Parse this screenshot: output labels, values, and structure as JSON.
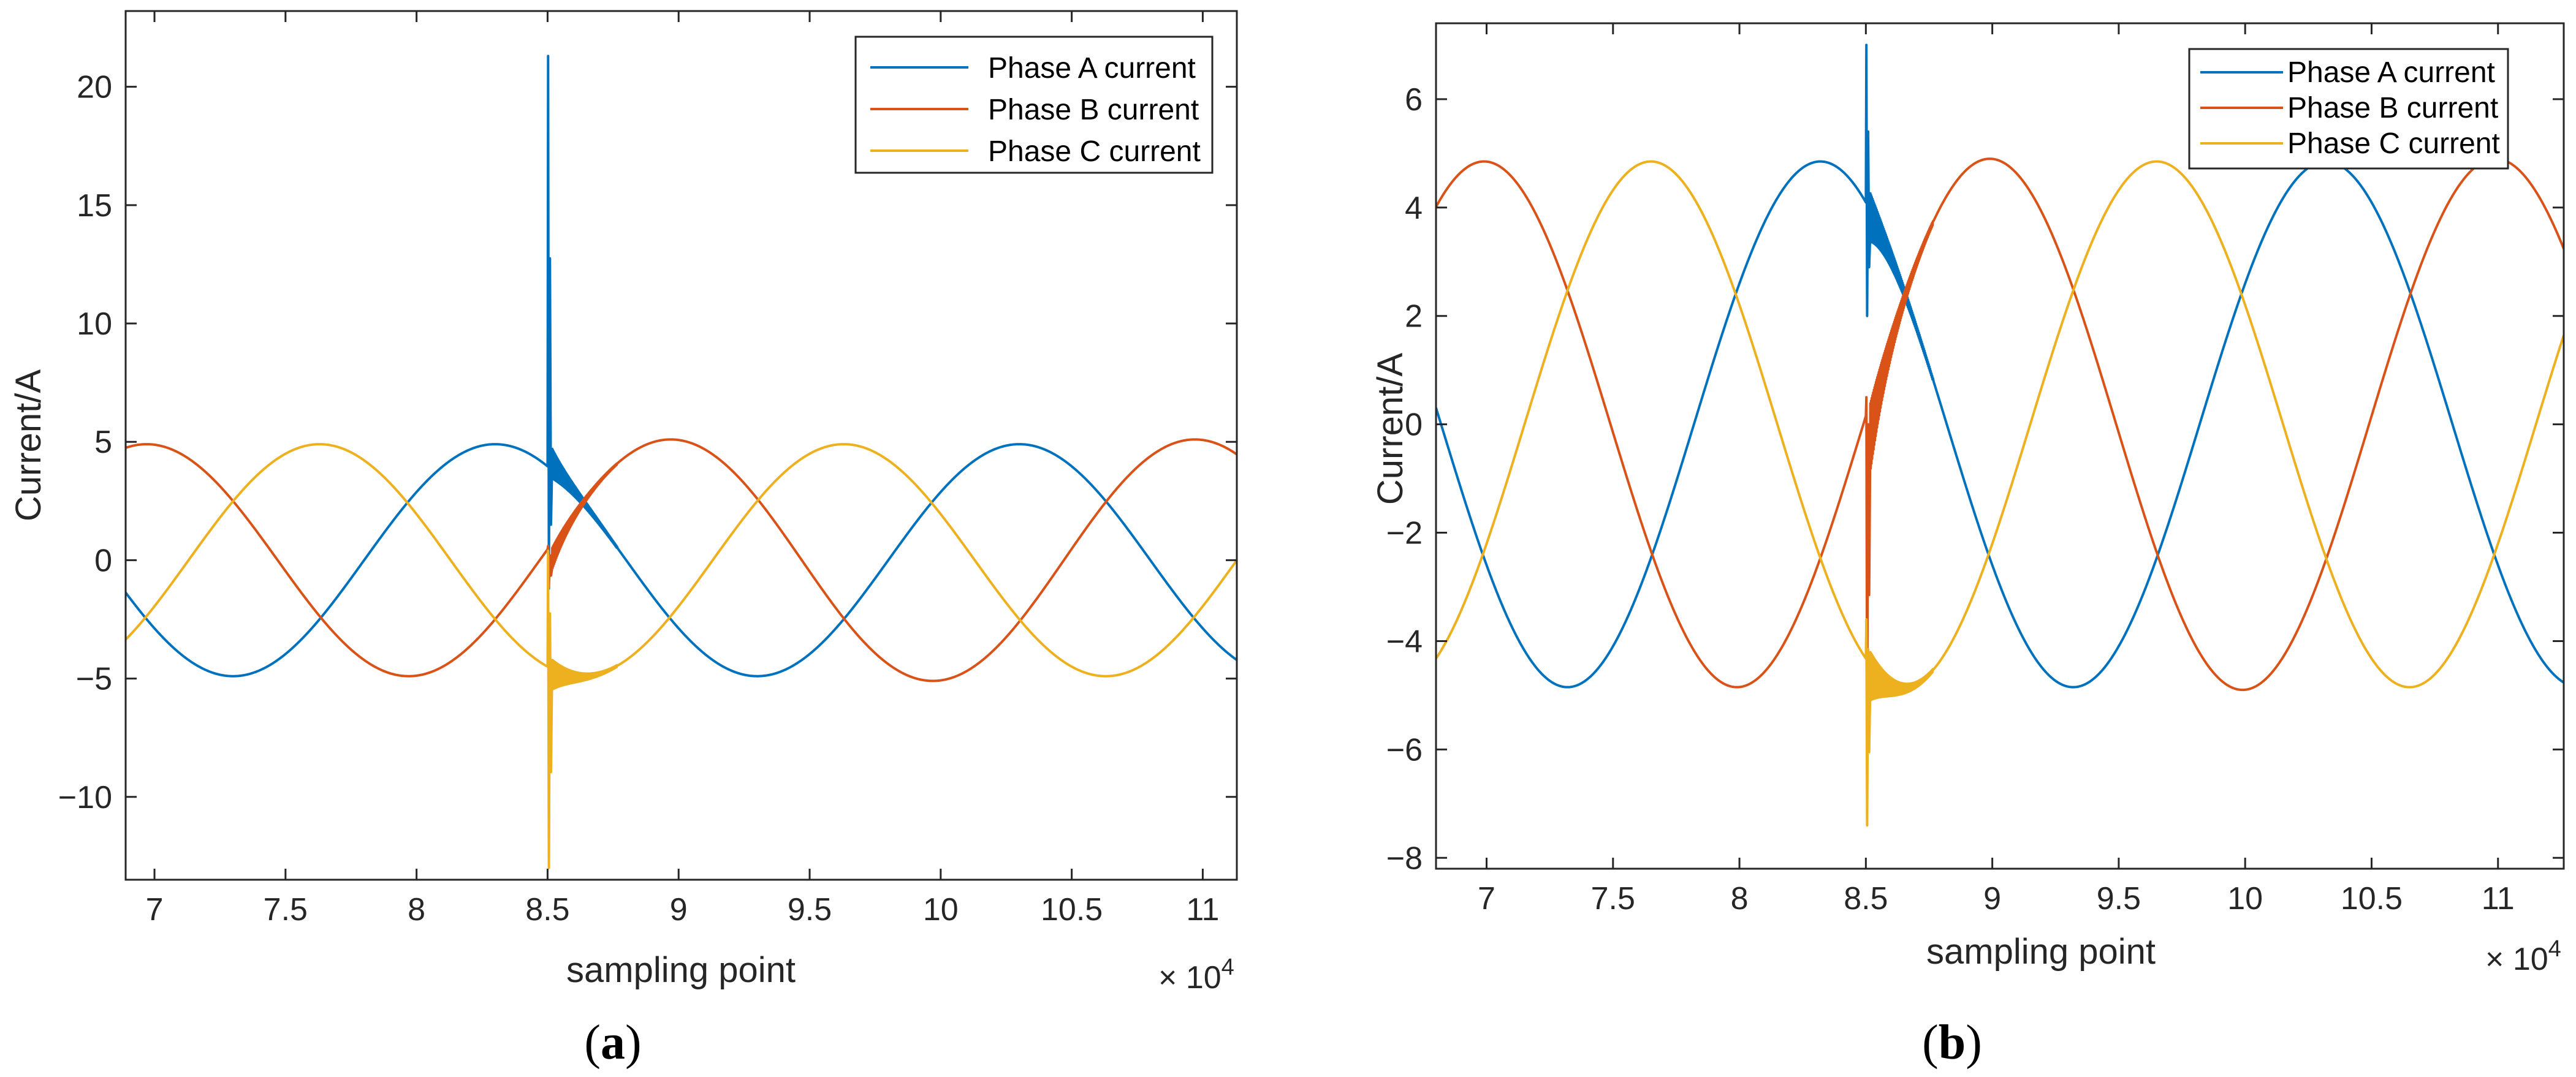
{
  "chart_data": [
    {
      "type": "line",
      "panel_label": "a",
      "xlabel": "sampling point",
      "ylabel": "Current/A",
      "x_multiplier": "× 10",
      "x_multiplier_exp": "4",
      "xlim": [
        68900,
        111300
      ],
      "ylim": [
        -13.5,
        23.2
      ],
      "xticks": [
        70000,
        75000,
        80000,
        85000,
        90000,
        95000,
        100000,
        105000,
        110000
      ],
      "xtick_labels": [
        "7",
        "7.5",
        "8",
        "8.5",
        "9",
        "9.5",
        "10",
        "10.5",
        "11"
      ],
      "yticks": [
        -10,
        -5,
        0,
        5,
        10,
        15,
        20
      ],
      "ytick_labels": [
        "−10",
        "−5",
        "0",
        "5",
        "10",
        "15",
        "20"
      ],
      "legend_position": "top-right",
      "fault_x": 85000,
      "period": 20000,
      "series": [
        {
          "name": "Phase A current",
          "color": "#0072BD",
          "amplitude_pre": 4.9,
          "peak_x_pre": 83000,
          "amplitude_post": 4.9,
          "peak_x_post": 103000,
          "transient": {
            "spike_max": 21.3,
            "spike_min": -1.2,
            "settle_from": 4.2
          }
        },
        {
          "name": "Phase B current",
          "color": "#D95319",
          "amplitude_pre": 4.9,
          "peak_x_pre": 69700,
          "amplitude_post": 5.1,
          "peak_x_post": 89700,
          "transient": {
            "spike_max": 0.6,
            "spike_min": -1.1,
            "settle_from": -0.2
          }
        },
        {
          "name": "Phase C current",
          "color": "#EDB120",
          "amplitude_pre": 4.9,
          "peak_x_pre": 76300,
          "amplitude_post": 4.9,
          "peak_x_post": 96300,
          "transient": {
            "spike_max": 0.4,
            "spike_min": -13.0,
            "settle_from": -4.9
          }
        }
      ]
    },
    {
      "type": "line",
      "panel_label": "b",
      "xlabel": "sampling point",
      "ylabel": "Current/A",
      "x_multiplier": "× 10",
      "x_multiplier_exp": "4",
      "xlim": [
        68000,
        112600
      ],
      "ylim": [
        -8.2,
        7.4
      ],
      "xticks": [
        70000,
        75000,
        80000,
        85000,
        90000,
        95000,
        100000,
        105000,
        110000
      ],
      "xtick_labels": [
        "7",
        "7.5",
        "8",
        "8.5",
        "9",
        "9.5",
        "10",
        "10.5",
        "11"
      ],
      "yticks": [
        -8,
        -6,
        -4,
        -2,
        0,
        2,
        4,
        6
      ],
      "ytick_labels": [
        "−8",
        "−6",
        "−4",
        "−2",
        "0",
        "2",
        "4",
        "6"
      ],
      "legend_position": "top-right",
      "fault_x": 85000,
      "period": 20000,
      "series": [
        {
          "name": "Phase A current",
          "color": "#0072BD",
          "amplitude_pre": 4.85,
          "peak_x_pre": 83200,
          "amplitude_post": 4.85,
          "peak_x_post": 103200,
          "transient": {
            "spike_max": 7.0,
            "spike_min": 2.0,
            "settle_from": 3.8
          }
        },
        {
          "name": "Phase B current",
          "color": "#D95319",
          "amplitude_pre": 4.85,
          "peak_x_pre": 69900,
          "amplitude_post": 4.9,
          "peak_x_post": 89900,
          "transient": {
            "spike_max": 0.5,
            "spike_min": -5.8,
            "settle_from": -0.5
          }
        },
        {
          "name": "Phase C current",
          "color": "#EDB120",
          "amplitude_pre": 4.85,
          "peak_x_pre": 76500,
          "amplitude_post": 4.85,
          "peak_x_post": 96500,
          "transient": {
            "spike_max": -3.6,
            "spike_min": -7.4,
            "settle_from": -4.7
          }
        }
      ]
    }
  ]
}
